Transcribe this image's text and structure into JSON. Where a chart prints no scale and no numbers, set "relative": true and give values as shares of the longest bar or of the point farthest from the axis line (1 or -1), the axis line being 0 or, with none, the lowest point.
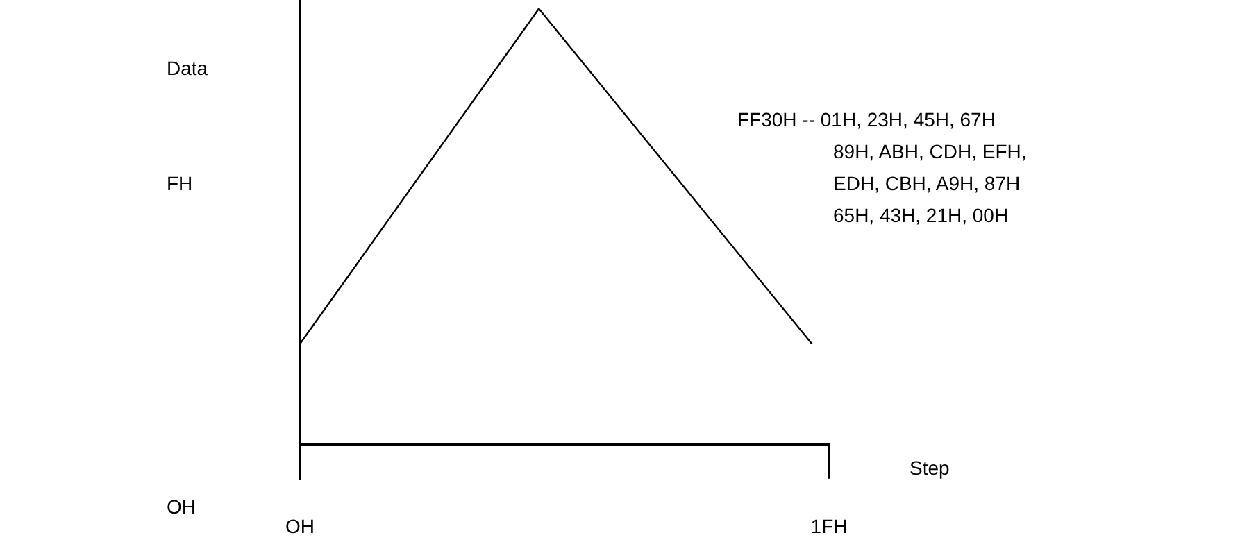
{
  "chart_data": {
    "type": "line",
    "xlabel": "Step",
    "ylabel": "Data",
    "relative": true,
    "categories": [
      "OH",
      null,
      null,
      null,
      null,
      null,
      null,
      null,
      null,
      null,
      null,
      null,
      null,
      null,
      null,
      null,
      null,
      null,
      null,
      null,
      null,
      null,
      null,
      null,
      null,
      null,
      null,
      null,
      null,
      null,
      null,
      "1FH"
    ],
    "series": [
      {
        "color": "#000000",
        "values": [
          0.23,
          null,
          null,
          null,
          null,
          null,
          null,
          null,
          null,
          null,
          null,
          null,
          null,
          null,
          1,
          null,
          null,
          null,
          null,
          null,
          null,
          null,
          null,
          null,
          null,
          null,
          null,
          null,
          null,
          null,
          0.23,
          null
        ]
      }
    ],
    "marker": "none",
    "line_style": "solid",
    "grid": false,
    "annotations": [
      "FF30H -- 01H, 23H, 45H, 67H",
      "89H, ABH, CDH, EFH,",
      "EDH, CBH, A9H, 87H",
      "65H, 43H, 21H, 00H",
      "FH",
      "OH"
    ]
  }
}
